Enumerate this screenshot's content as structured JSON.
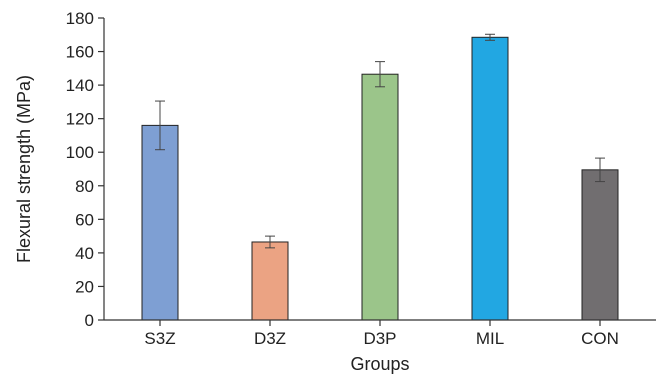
{
  "chart_data": {
    "type": "bar",
    "xlabel": "Groups",
    "ylabel": "Flexural strength (MPa)",
    "ylim": [
      0,
      180
    ],
    "yticks": [
      0,
      20,
      40,
      60,
      80,
      100,
      120,
      140,
      160,
      180
    ],
    "grid": false,
    "categories": [
      "S3Z",
      "D3Z",
      "D3P",
      "MIL",
      "CON"
    ],
    "values": [
      116,
      46.5,
      146.5,
      168.5,
      89.5
    ],
    "error": [
      14.5,
      3.5,
      7.5,
      1.8,
      7
    ],
    "colors": [
      "#7e9fd3",
      "#eba383",
      "#9bc58a",
      "#22a7e2",
      "#716e70"
    ]
  }
}
